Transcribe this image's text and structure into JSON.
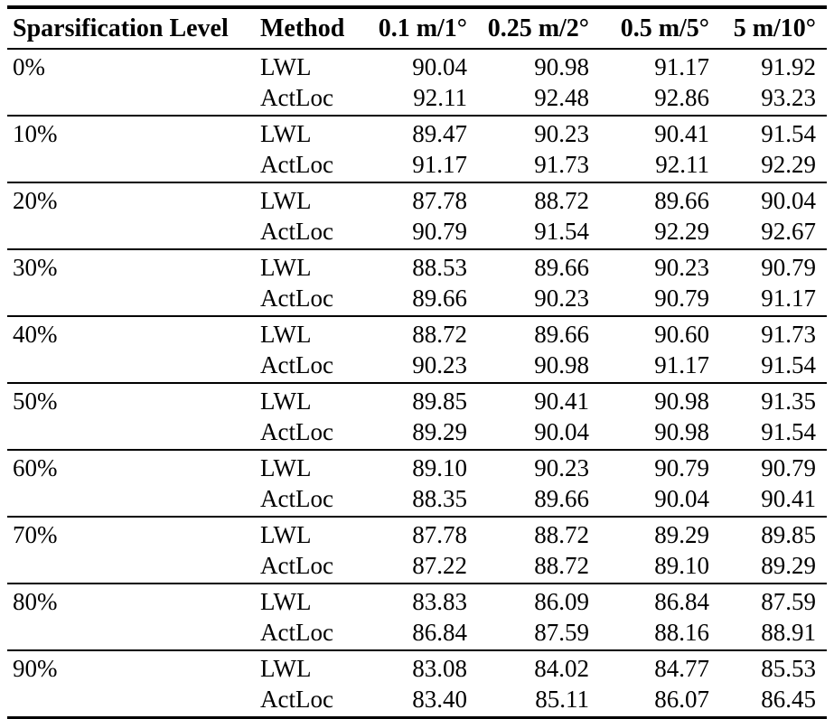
{
  "chart_data": {
    "type": "table",
    "columns": [
      "Sparsification Level",
      "Method",
      "0.1 m/1°",
      "0.25 m/2°",
      "0.5 m/5°",
      "5 m/10°"
    ],
    "groups": [
      {
        "level": "0%",
        "rows": [
          [
            "LWL",
            "90.04",
            "90.98",
            "91.17",
            "91.92"
          ],
          [
            "ActLoc",
            "92.11",
            "92.48",
            "92.86",
            "93.23"
          ]
        ]
      },
      {
        "level": "10%",
        "rows": [
          [
            "LWL",
            "89.47",
            "90.23",
            "90.41",
            "91.54"
          ],
          [
            "ActLoc",
            "91.17",
            "91.73",
            "92.11",
            "92.29"
          ]
        ]
      },
      {
        "level": "20%",
        "rows": [
          [
            "LWL",
            "87.78",
            "88.72",
            "89.66",
            "90.04"
          ],
          [
            "ActLoc",
            "90.79",
            "91.54",
            "92.29",
            "92.67"
          ]
        ]
      },
      {
        "level": "30%",
        "rows": [
          [
            "LWL",
            "88.53",
            "89.66",
            "90.23",
            "90.79"
          ],
          [
            "ActLoc",
            "89.66",
            "90.23",
            "90.79",
            "91.17"
          ]
        ]
      },
      {
        "level": "40%",
        "rows": [
          [
            "LWL",
            "88.72",
            "89.66",
            "90.60",
            "91.73"
          ],
          [
            "ActLoc",
            "90.23",
            "90.98",
            "91.17",
            "91.54"
          ]
        ]
      },
      {
        "level": "50%",
        "rows": [
          [
            "LWL",
            "89.85",
            "90.41",
            "90.98",
            "91.35"
          ],
          [
            "ActLoc",
            "89.29",
            "90.04",
            "90.98",
            "91.54"
          ]
        ]
      },
      {
        "level": "60%",
        "rows": [
          [
            "LWL",
            "89.10",
            "90.23",
            "90.79",
            "90.79"
          ],
          [
            "ActLoc",
            "88.35",
            "89.66",
            "90.04",
            "90.41"
          ]
        ]
      },
      {
        "level": "70%",
        "rows": [
          [
            "LWL",
            "87.78",
            "88.72",
            "89.29",
            "89.85"
          ],
          [
            "ActLoc",
            "87.22",
            "88.72",
            "89.10",
            "89.29"
          ]
        ]
      },
      {
        "level": "80%",
        "rows": [
          [
            "LWL",
            "83.83",
            "86.09",
            "86.84",
            "87.59"
          ],
          [
            "ActLoc",
            "86.84",
            "87.59",
            "88.16",
            "88.91"
          ]
        ]
      },
      {
        "level": "90%",
        "rows": [
          [
            "LWL",
            "83.08",
            "84.02",
            "84.77",
            "85.53"
          ],
          [
            "ActLoc",
            "83.40",
            "85.11",
            "86.07",
            "86.45"
          ]
        ]
      }
    ],
    "layout": {
      "text_color": "#000000",
      "rule_color": "#000000"
    }
  }
}
